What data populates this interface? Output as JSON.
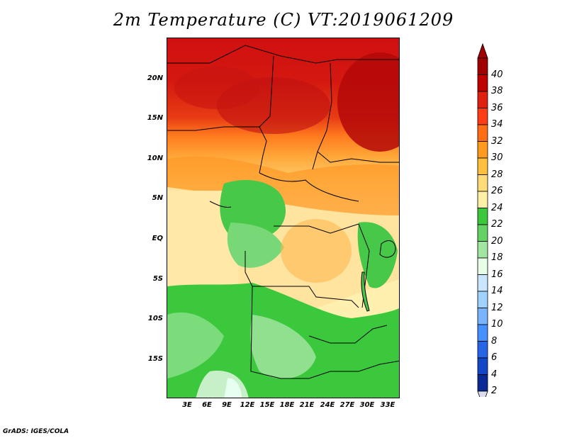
{
  "title": "2m Temperature (C) VT:2019061209",
  "credit": "GrADS: IGES/COLA",
  "lat_ticks": [
    "20N",
    "15N",
    "10N",
    "5N",
    "EQ",
    "5S",
    "10S",
    "15S"
  ],
  "lon_ticks": [
    "3E",
    "6E",
    "9E",
    "12E",
    "15E",
    "18E",
    "21E",
    "24E",
    "27E",
    "30E",
    "33E"
  ],
  "colorbar": {
    "labels": [
      "40",
      "38",
      "36",
      "34",
      "32",
      "30",
      "28",
      "26",
      "24",
      "22",
      "20",
      "18",
      "16",
      "14",
      "12",
      "10",
      "8",
      "6",
      "4",
      "2"
    ],
    "colors": [
      "#a00000",
      "#c00000",
      "#e02010",
      "#ff3c14",
      "#ff6e14",
      "#ff9a1e",
      "#ffc040",
      "#ffdc78",
      "#fff0a8",
      "#3cc83c",
      "#64d264",
      "#a0e6a0",
      "#e6ffe6",
      "#c8e6ff",
      "#a0d2ff",
      "#78b4ff",
      "#4690ff",
      "#2864e6",
      "#1446c8",
      "#0a2896"
    ],
    "top_arrow_color": "#a00000",
    "bottom_arrow_color": "#dcdcf0"
  }
}
